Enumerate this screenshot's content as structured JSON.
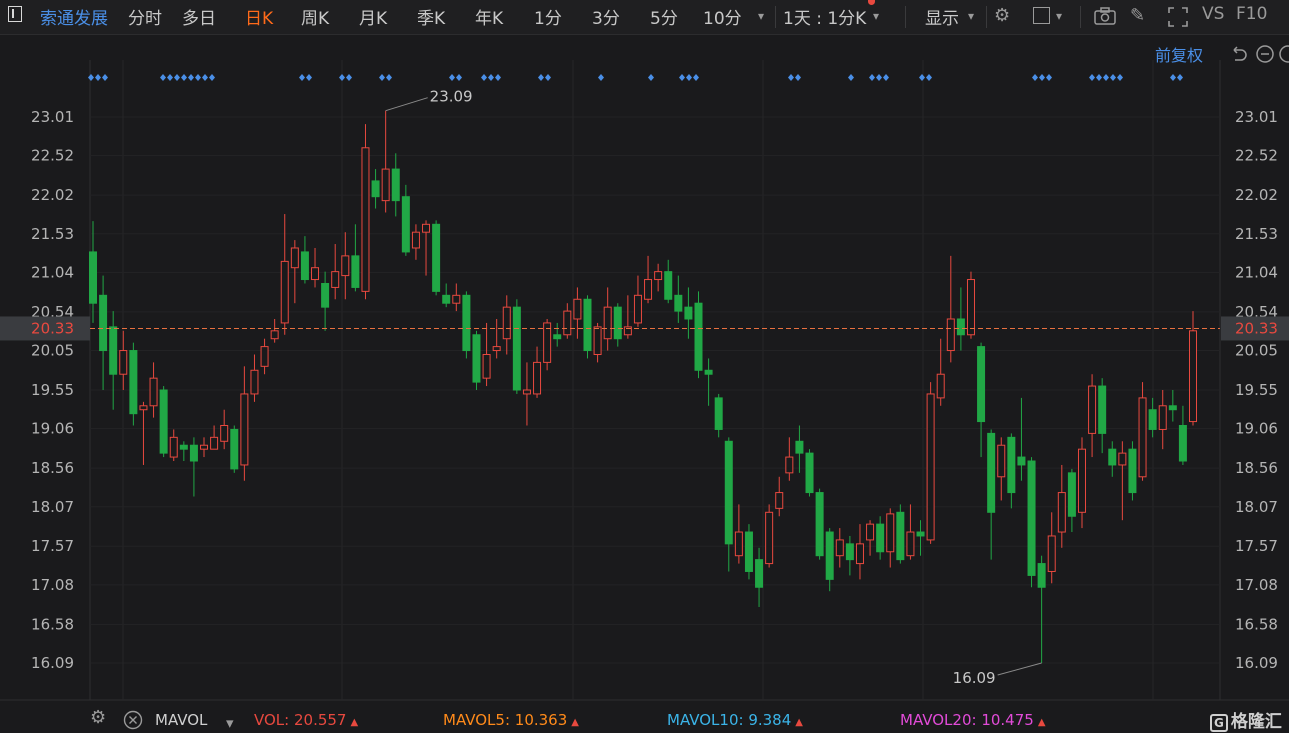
{
  "toolbar": {
    "stock_name": "索通发展",
    "periods": [
      "分时",
      "多日",
      "日K",
      "周K",
      "月K",
      "季K",
      "年K",
      "1分",
      "3分",
      "5分",
      "10分"
    ],
    "active_period": "日K",
    "range_select": "1天 : 1分K",
    "display_label": "显示",
    "vs_label": "VS",
    "f10_label": "F10"
  },
  "adjust_label": "前复权",
  "colors": {
    "up": "#e8493f",
    "down": "#21a846",
    "accent": "#4a8fe7",
    "active": "#ff6a1a"
  },
  "chart_data": {
    "type": "candlestick",
    "y_ticks": [
      "23.01",
      "22.52",
      "22.02",
      "21.53",
      "21.04",
      "20.54",
      "20.05",
      "19.55",
      "19.06",
      "18.56",
      "18.07",
      "17.57",
      "17.08",
      "16.58",
      "16.09"
    ],
    "ylim": [
      15.9,
      23.25
    ],
    "current_price": "20.33",
    "max_label": "23.09",
    "min_label": "16.09",
    "candles": [
      {
        "o": 21.3,
        "c": 20.65,
        "h": 21.69,
        "l": 20.4
      },
      {
        "o": 20.75,
        "c": 20.05,
        "h": 21.0,
        "l": 19.55
      },
      {
        "o": 20.35,
        "c": 19.75,
        "h": 20.55,
        "l": 19.3
      },
      {
        "o": 19.75,
        "c": 20.05,
        "h": 20.3,
        "l": 19.55
      },
      {
        "o": 20.05,
        "c": 19.25,
        "h": 20.15,
        "l": 19.1
      },
      {
        "o": 19.3,
        "c": 19.35,
        "h": 19.4,
        "l": 18.6
      },
      {
        "o": 19.35,
        "c": 19.7,
        "h": 19.9,
        "l": 19.2
      },
      {
        "o": 19.55,
        "c": 18.75,
        "h": 19.6,
        "l": 18.7
      },
      {
        "o": 18.7,
        "c": 18.95,
        "h": 19.05,
        "l": 18.65
      },
      {
        "o": 18.85,
        "c": 18.8,
        "h": 18.9,
        "l": 18.65
      },
      {
        "o": 18.85,
        "c": 18.65,
        "h": 18.95,
        "l": 18.2
      },
      {
        "o": 18.8,
        "c": 18.85,
        "h": 18.95,
        "l": 18.7
      },
      {
        "o": 18.8,
        "c": 18.95,
        "h": 19.1,
        "l": 18.8
      },
      {
        "o": 18.9,
        "c": 19.1,
        "h": 19.3,
        "l": 18.8
      },
      {
        "o": 19.05,
        "c": 18.55,
        "h": 19.1,
        "l": 18.5
      },
      {
        "o": 18.6,
        "c": 19.5,
        "h": 19.85,
        "l": 18.4
      },
      {
        "o": 19.5,
        "c": 19.8,
        "h": 20.0,
        "l": 19.4
      },
      {
        "o": 19.85,
        "c": 20.1,
        "h": 20.2,
        "l": 19.75
      },
      {
        "o": 20.2,
        "c": 20.3,
        "h": 20.45,
        "l": 20.15
      },
      {
        "o": 20.4,
        "c": 21.18,
        "h": 21.78,
        "l": 20.25
      },
      {
        "o": 21.1,
        "c": 21.35,
        "h": 21.45,
        "l": 20.65
      },
      {
        "o": 21.3,
        "c": 20.95,
        "h": 21.5,
        "l": 20.9
      },
      {
        "o": 20.95,
        "c": 21.1,
        "h": 21.35,
        "l": 20.85
      },
      {
        "o": 20.9,
        "c": 20.6,
        "h": 21.05,
        "l": 20.3
      },
      {
        "o": 20.85,
        "c": 21.05,
        "h": 21.4,
        "l": 20.7
      },
      {
        "o": 21.0,
        "c": 21.25,
        "h": 21.55,
        "l": 20.7
      },
      {
        "o": 21.25,
        "c": 20.85,
        "h": 21.65,
        "l": 20.8
      },
      {
        "o": 20.8,
        "c": 22.62,
        "h": 22.92,
        "l": 20.7
      },
      {
        "o": 22.2,
        "c": 22.0,
        "h": 22.35,
        "l": 21.85
      },
      {
        "o": 21.95,
        "c": 22.35,
        "h": 23.09,
        "l": 21.8
      },
      {
        "o": 22.35,
        "c": 21.95,
        "h": 22.55,
        "l": 21.75
      },
      {
        "o": 22.0,
        "c": 21.3,
        "h": 22.15,
        "l": 21.25
      },
      {
        "o": 21.35,
        "c": 21.55,
        "h": 21.65,
        "l": 21.2
      },
      {
        "o": 21.55,
        "c": 21.65,
        "h": 21.7,
        "l": 21.0
      },
      {
        "o": 21.65,
        "c": 20.8,
        "h": 21.7,
        "l": 20.75
      },
      {
        "o": 20.75,
        "c": 20.65,
        "h": 20.9,
        "l": 20.6
      },
      {
        "o": 20.65,
        "c": 20.75,
        "h": 20.9,
        "l": 20.55
      },
      {
        "o": 20.75,
        "c": 20.05,
        "h": 20.8,
        "l": 19.95
      },
      {
        "o": 20.25,
        "c": 19.65,
        "h": 20.3,
        "l": 19.55
      },
      {
        "o": 19.7,
        "c": 20.0,
        "h": 20.4,
        "l": 19.6
      },
      {
        "o": 20.05,
        "c": 20.1,
        "h": 20.45,
        "l": 19.95
      },
      {
        "o": 20.2,
        "c": 20.6,
        "h": 20.75,
        "l": 20.0
      },
      {
        "o": 20.6,
        "c": 19.55,
        "h": 20.7,
        "l": 19.5
      },
      {
        "o": 19.5,
        "c": 19.55,
        "h": 19.9,
        "l": 19.1
      },
      {
        "o": 19.5,
        "c": 19.9,
        "h": 20.1,
        "l": 19.45
      },
      {
        "o": 19.9,
        "c": 20.4,
        "h": 20.45,
        "l": 19.8
      },
      {
        "o": 20.25,
        "c": 20.2,
        "h": 20.4,
        "l": 20.1
      },
      {
        "o": 20.25,
        "c": 20.55,
        "h": 20.65,
        "l": 20.2
      },
      {
        "o": 20.45,
        "c": 20.7,
        "h": 20.85,
        "l": 20.2
      },
      {
        "o": 20.7,
        "c": 20.05,
        "h": 20.75,
        "l": 19.95
      },
      {
        "o": 20.0,
        "c": 20.35,
        "h": 20.4,
        "l": 19.9
      },
      {
        "o": 20.2,
        "c": 20.6,
        "h": 20.85,
        "l": 20.05
      },
      {
        "o": 20.6,
        "c": 20.2,
        "h": 20.65,
        "l": 20.1
      },
      {
        "o": 20.25,
        "c": 20.35,
        "h": 20.75,
        "l": 20.2
      },
      {
        "o": 20.4,
        "c": 20.75,
        "h": 21.0,
        "l": 20.35
      },
      {
        "o": 20.7,
        "c": 20.95,
        "h": 21.25,
        "l": 20.65
      },
      {
        "o": 20.95,
        "c": 21.05,
        "h": 21.15,
        "l": 20.8
      },
      {
        "o": 21.05,
        "c": 20.7,
        "h": 21.2,
        "l": 20.65
      },
      {
        "o": 20.75,
        "c": 20.55,
        "h": 21.0,
        "l": 20.4
      },
      {
        "o": 20.6,
        "c": 20.45,
        "h": 20.85,
        "l": 20.2
      },
      {
        "o": 20.65,
        "c": 19.8,
        "h": 20.8,
        "l": 19.7
      },
      {
        "o": 19.8,
        "c": 19.75,
        "h": 19.95,
        "l": 19.35
      },
      {
        "o": 19.45,
        "c": 19.05,
        "h": 19.5,
        "l": 18.95
      },
      {
        "o": 18.9,
        "c": 17.6,
        "h": 18.95,
        "l": 17.25
      },
      {
        "o": 17.45,
        "c": 17.75,
        "h": 18.1,
        "l": 17.35
      },
      {
        "o": 17.75,
        "c": 17.25,
        "h": 17.85,
        "l": 17.15
      },
      {
        "o": 17.4,
        "c": 17.05,
        "h": 17.55,
        "l": 16.8
      },
      {
        "o": 17.35,
        "c": 18.0,
        "h": 18.1,
        "l": 17.3
      },
      {
        "o": 18.05,
        "c": 18.25,
        "h": 18.45,
        "l": 17.95
      },
      {
        "o": 18.5,
        "c": 18.7,
        "h": 18.95,
        "l": 18.4
      },
      {
        "o": 18.9,
        "c": 18.75,
        "h": 19.1,
        "l": 18.5
      },
      {
        "o": 18.75,
        "c": 18.25,
        "h": 18.8,
        "l": 18.2
      },
      {
        "o": 18.25,
        "c": 17.45,
        "h": 18.3,
        "l": 17.4
      },
      {
        "o": 17.75,
        "c": 17.15,
        "h": 17.8,
        "l": 17.0
      },
      {
        "o": 17.45,
        "c": 17.65,
        "h": 17.8,
        "l": 17.3
      },
      {
        "o": 17.6,
        "c": 17.4,
        "h": 17.7,
        "l": 17.2
      },
      {
        "o": 17.35,
        "c": 17.6,
        "h": 17.85,
        "l": 17.15
      },
      {
        "o": 17.65,
        "c": 17.85,
        "h": 17.9,
        "l": 17.45
      },
      {
        "o": 17.85,
        "c": 17.5,
        "h": 17.95,
        "l": 17.4
      },
      {
        "o": 17.5,
        "c": 17.98,
        "h": 18.05,
        "l": 17.3
      },
      {
        "o": 18.0,
        "c": 17.4,
        "h": 18.1,
        "l": 17.35
      },
      {
        "o": 17.45,
        "c": 17.75,
        "h": 18.1,
        "l": 17.4
      },
      {
        "o": 17.75,
        "c": 17.7,
        "h": 17.9,
        "l": 17.45
      },
      {
        "o": 17.65,
        "c": 19.5,
        "h": 19.65,
        "l": 17.6
      },
      {
        "o": 19.45,
        "c": 19.75,
        "h": 20.2,
        "l": 19.35
      },
      {
        "o": 20.05,
        "c": 20.45,
        "h": 21.25,
        "l": 19.9
      },
      {
        "o": 20.45,
        "c": 20.25,
        "h": 20.85,
        "l": 20.05
      },
      {
        "o": 20.25,
        "c": 20.95,
        "h": 21.05,
        "l": 20.2
      },
      {
        "o": 20.1,
        "c": 19.15,
        "h": 20.15,
        "l": 18.7
      },
      {
        "o": 19.0,
        "c": 18.0,
        "h": 19.05,
        "l": 17.4
      },
      {
        "o": 18.45,
        "c": 18.85,
        "h": 18.95,
        "l": 18.15
      },
      {
        "o": 18.95,
        "c": 18.25,
        "h": 19.0,
        "l": 18.05
      },
      {
        "o": 18.7,
        "c": 18.6,
        "h": 19.45,
        "l": 18.4
      },
      {
        "o": 18.65,
        "c": 17.2,
        "h": 18.7,
        "l": 17.05
      },
      {
        "o": 17.35,
        "c": 17.05,
        "h": 17.45,
        "l": 16.09
      },
      {
        "o": 17.25,
        "c": 17.7,
        "h": 18.0,
        "l": 17.1
      },
      {
        "o": 17.75,
        "c": 18.25,
        "h": 18.6,
        "l": 17.55
      },
      {
        "o": 18.5,
        "c": 17.95,
        "h": 18.55,
        "l": 17.75
      },
      {
        "o": 18.0,
        "c": 18.8,
        "h": 18.95,
        "l": 17.8
      },
      {
        "o": 19.0,
        "c": 19.6,
        "h": 19.75,
        "l": 18.7
      },
      {
        "o": 19.6,
        "c": 19.0,
        "h": 19.7,
        "l": 18.75
      },
      {
        "o": 18.8,
        "c": 18.6,
        "h": 18.9,
        "l": 18.45
      },
      {
        "o": 18.6,
        "c": 18.75,
        "h": 18.9,
        "l": 17.9
      },
      {
        "o": 18.8,
        "c": 18.25,
        "h": 18.9,
        "l": 18.15
      },
      {
        "o": 18.45,
        "c": 19.45,
        "h": 19.65,
        "l": 18.4
      },
      {
        "o": 19.3,
        "c": 19.05,
        "h": 19.45,
        "l": 18.95
      },
      {
        "o": 19.05,
        "c": 19.35,
        "h": 19.55,
        "l": 18.8
      },
      {
        "o": 19.35,
        "c": 19.3,
        "h": 19.55,
        "l": 19.15
      },
      {
        "o": 19.1,
        "c": 18.65,
        "h": 19.35,
        "l": 18.6
      },
      {
        "o": 19.15,
        "c": 20.3,
        "h": 20.55,
        "l": 19.1
      }
    ],
    "markers": [
      91,
      98,
      105,
      163,
      170,
      177,
      184,
      191,
      198,
      205,
      212,
      302,
      309,
      342,
      349,
      382,
      389,
      452,
      459,
      484,
      491,
      498,
      541,
      548,
      601,
      651,
      682,
      689,
      696,
      791,
      798,
      851,
      872,
      879,
      886,
      922,
      929,
      1035,
      1042,
      1049,
      1092,
      1099,
      1106,
      1113,
      1120,
      1173,
      1180
    ],
    "vol": {
      "label": "MAVOL",
      "vol": "VOL: 20.557",
      "mavol5": "MAVOL5: 10.363",
      "mavol10": "MAVOL10: 9.384",
      "mavol20": "MAVOL20: 10.475"
    },
    "watermark": "格隆汇"
  }
}
